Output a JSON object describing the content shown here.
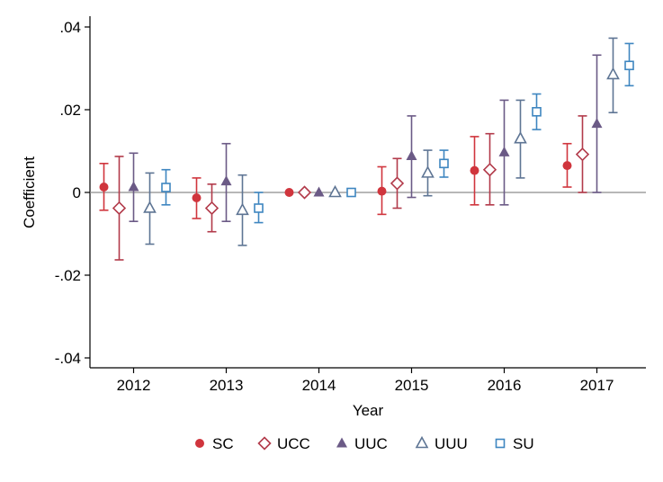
{
  "chart_data": {
    "type": "scatter",
    "title": "",
    "xlabel": "Year",
    "ylabel": "Coefficient",
    "ylim": [
      -0.042,
      0.042
    ],
    "yticks": [
      -0.04,
      -0.02,
      0,
      0.02,
      0.04
    ],
    "ytick_labels": [
      "-.04",
      "-.02",
      "0",
      ".02",
      ".04"
    ],
    "categories": [
      "2012",
      "2013",
      "2014",
      "2015",
      "2016",
      "2017"
    ],
    "reference_line": 0,
    "grid": false,
    "legend_position": "bottom",
    "series": [
      {
        "name": "SC",
        "marker": "filled-circle",
        "color": "#d0353d",
        "values": [
          0.0013,
          -0.0013,
          0.0,
          0.0003,
          0.0053,
          0.0065
        ],
        "ci_low": [
          -0.0043,
          -0.0063,
          0.0,
          -0.0053,
          -0.003,
          0.0013
        ],
        "ci_high": [
          0.007,
          0.0035,
          0.0,
          0.0062,
          0.0135,
          0.0118
        ]
      },
      {
        "name": "UCC",
        "marker": "hollow-diamond",
        "color": "#b23a4a",
        "values": [
          -0.0038,
          -0.0038,
          0.0,
          0.0022,
          0.0055,
          0.0092
        ],
        "ci_low": [
          -0.0163,
          -0.0095,
          0.0,
          -0.0038,
          -0.003,
          0.0
        ],
        "ci_high": [
          0.0087,
          0.002,
          0.0,
          0.0082,
          0.0142,
          0.0185
        ]
      },
      {
        "name": "UUC",
        "marker": "filled-triangle",
        "color": "#6b5a86",
        "values": [
          0.0013,
          0.0027,
          0.0,
          0.0088,
          0.0097,
          0.0166
        ],
        "ci_low": [
          -0.007,
          -0.007,
          0.0,
          -0.0012,
          -0.003,
          0.0
        ],
        "ci_high": [
          0.0095,
          0.0118,
          0.0,
          0.0185,
          0.0223,
          0.0332
        ]
      },
      {
        "name": "UUU",
        "marker": "hollow-triangle",
        "color": "#5e7594",
        "values": [
          -0.0038,
          -0.0043,
          0.0,
          0.0047,
          0.013,
          0.0285
        ],
        "ci_low": [
          -0.0125,
          -0.0128,
          0.0,
          -0.0008,
          0.0035,
          0.0193
        ],
        "ci_high": [
          0.0047,
          0.0042,
          0.0,
          0.0102,
          0.0223,
          0.0373
        ]
      },
      {
        "name": "SU",
        "marker": "hollow-square",
        "color": "#3e86c0",
        "values": [
          0.0012,
          -0.0038,
          0.0,
          0.007,
          0.0195,
          0.0307
        ],
        "ci_low": [
          -0.003,
          -0.0073,
          0.0,
          0.0037,
          0.0152,
          0.0258
        ],
        "ci_high": [
          0.0055,
          0.0,
          0.0,
          0.0102,
          0.0238,
          0.036
        ]
      }
    ]
  }
}
